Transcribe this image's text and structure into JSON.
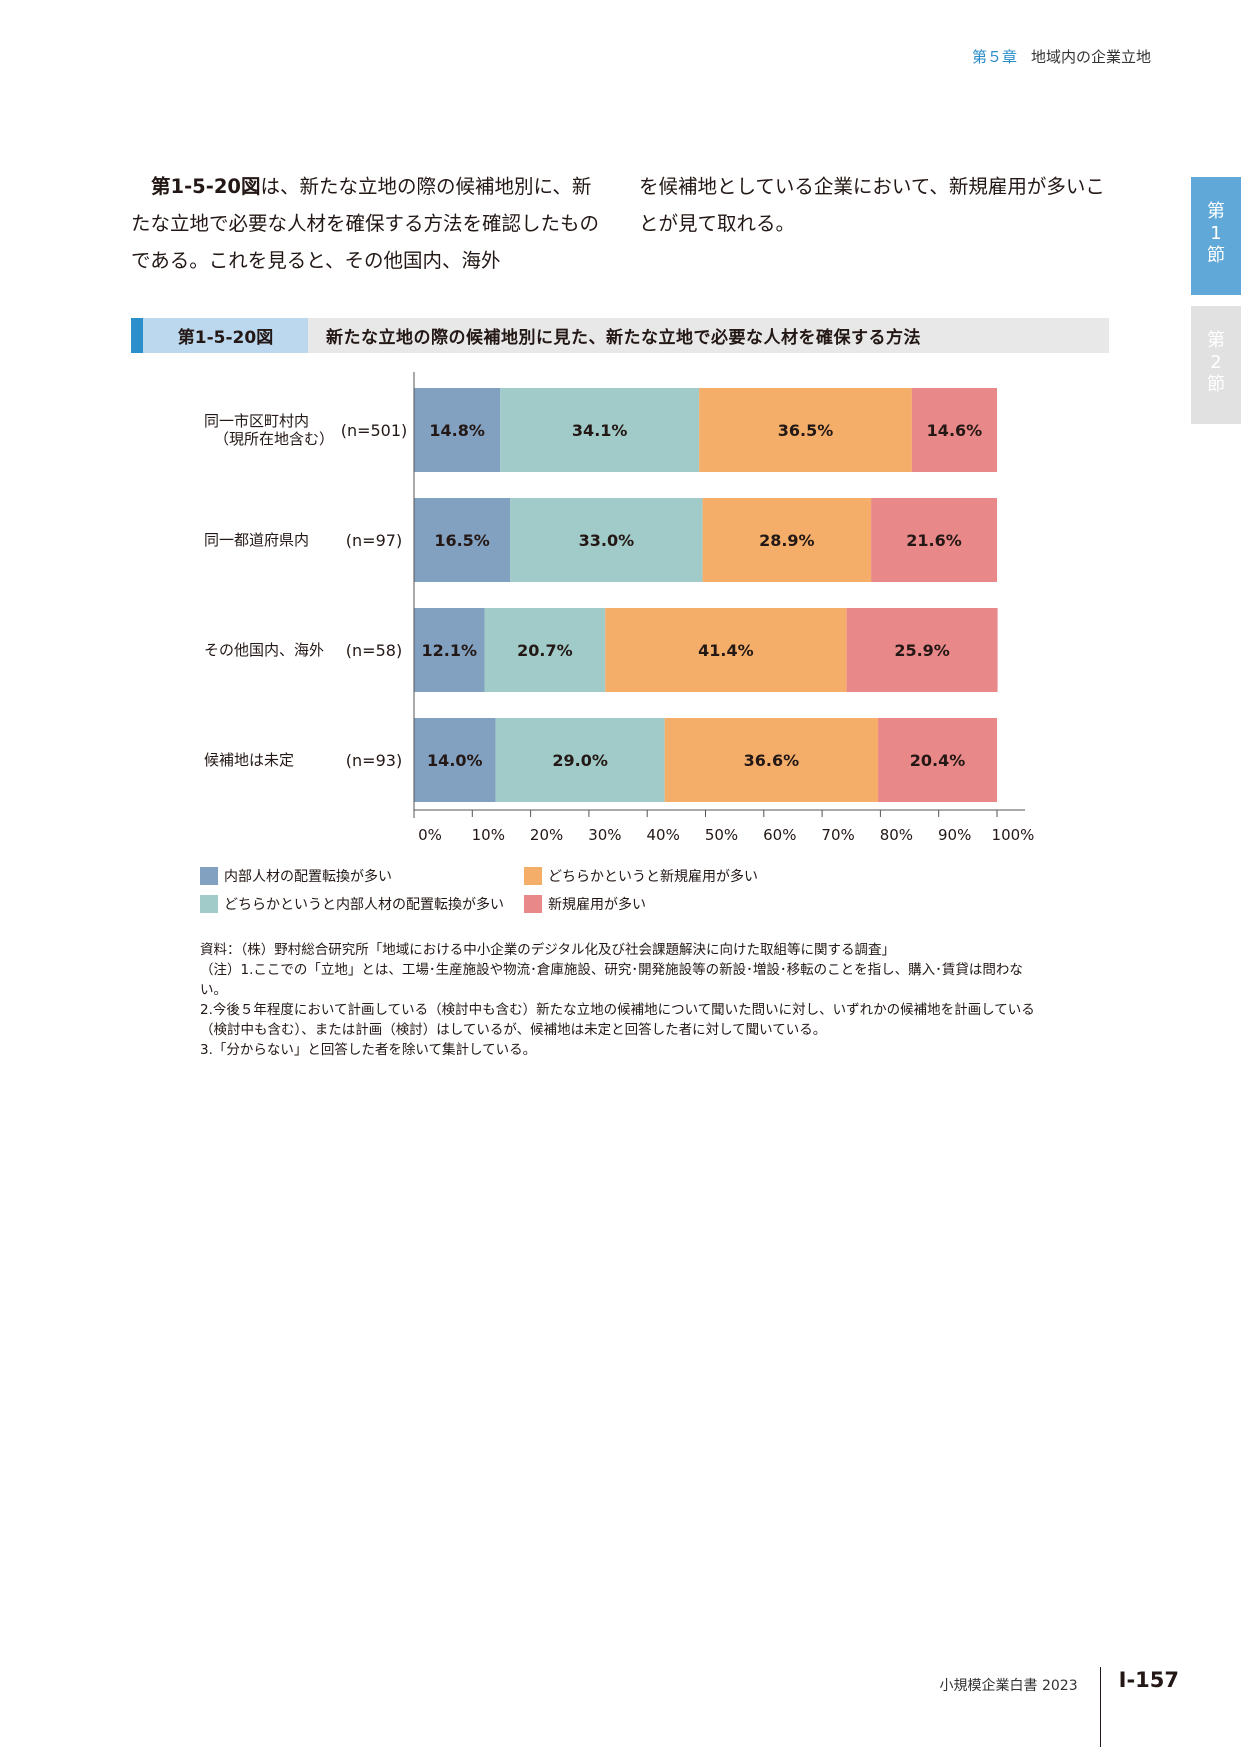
{
  "header": {
    "chapter_num": "第５章",
    "chapter_title": "地域内の企業立地"
  },
  "side_tabs": [
    {
      "label": "第\n1\n節",
      "active": true
    },
    {
      "label": "第\n2\n節",
      "active": false
    }
  ],
  "intro": {
    "fig_ref": "第1-5-20図",
    "col1_rest": "は、新たな立地の際の候補地別に、新たな立地で必要な人材を確保する方法を確認したものである。これを見ると、その他国内、海外",
    "col2": "を候補地としている企業において、新規雇用が多いことが見て取れる。"
  },
  "figure": {
    "number": "第1-5-20図",
    "title": "新たな立地の際の候補地別に見た、新たな立地で必要な人材を確保する方法"
  },
  "chart_data": {
    "type": "bar",
    "orientation": "horizontal",
    "stacked": true,
    "categories": [
      {
        "label_lines": [
          "同一市区町村内",
          "（現所在地含む）"
        ],
        "n": "(n=501)"
      },
      {
        "label_lines": [
          "同一都道府県内"
        ],
        "n": "(n=97)"
      },
      {
        "label_lines": [
          "その他国内、海外"
        ],
        "n": "(n=58)"
      },
      {
        "label_lines": [
          "候補地は未定"
        ],
        "n": "(n=93)"
      }
    ],
    "series": [
      {
        "name": "内部人材の配置転換が多い",
        "color": "#82a0c0",
        "values": [
          14.8,
          16.5,
          12.1,
          14.0
        ],
        "labels": [
          "14.8%",
          "16.5%",
          "12.1%",
          "14.0%"
        ]
      },
      {
        "name": "どちらかというと内部人材の配置転換が多い",
        "color": "#a0cbc8",
        "values": [
          34.1,
          33.0,
          20.7,
          29.0
        ],
        "labels": [
          "34.1%",
          "33.0%",
          "20.7%",
          "29.0%"
        ]
      },
      {
        "name": "どちらかというと新規雇用が多い",
        "color": "#f4ae6a",
        "values": [
          36.5,
          28.9,
          41.4,
          36.6
        ],
        "labels": [
          "36.5%",
          "28.9%",
          "41.4%",
          "36.6%"
        ]
      },
      {
        "name": "新規雇用が多い",
        "color": "#e98888",
        "values": [
          14.6,
          21.6,
          25.9,
          20.4
        ],
        "labels": [
          "14.6%",
          "21.6%",
          "25.9%",
          "20.4%"
        ]
      }
    ],
    "xlim": [
      0,
      100
    ],
    "x_ticks": [
      "0%",
      "10%",
      "20%",
      "30%",
      "40%",
      "50%",
      "60%",
      "70%",
      "80%",
      "90%",
      "100%"
    ],
    "legend_placement": "bottom"
  },
  "notes": [
    "資料：（株）野村総合研究所「地域における中小企業のデジタル化及び社会課題解決に向けた取組等に関する調査」",
    "（注）1.ここでの「立地」とは、工場･生産施設や物流･倉庫施設、研究･開発施設等の新設･増設･移転のことを指し、購入･賃貸は問わない。",
    "2.今後５年程度において計画している（検討中も含む）新たな立地の候補地について聞いた問いに対し、いずれかの候補地を計画している（検討中も含む）、または計画（検討）はしているが、候補地は未定と回答した者に対して聞いている。",
    "3.「分からない」と回答した者を除いて集計している。"
  ],
  "footer": {
    "book": "小規模企業白書 2023",
    "page": "Ⅰ-157"
  }
}
